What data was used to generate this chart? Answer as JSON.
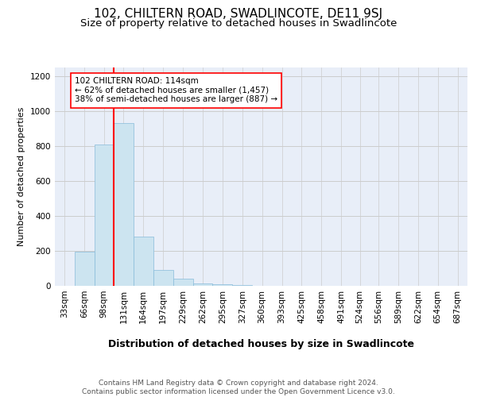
{
  "title": "102, CHILTERN ROAD, SWADLINCOTE, DE11 9SJ",
  "subtitle": "Size of property relative to detached houses in Swadlincote",
  "xlabel": "Distribution of detached houses by size in Swadlincote",
  "ylabel": "Number of detached properties",
  "bar_color": "#cce4f0",
  "bar_edge_color": "#88bbda",
  "vline_color": "red",
  "vline_x": 114,
  "annotation_text": "102 CHILTERN ROAD: 114sqm\n← 62% of detached houses are smaller (1,457)\n38% of semi-detached houses are larger (887) →",
  "annotation_box_color": "white",
  "annotation_box_edge": "red",
  "categories": [
    "33sqm",
    "66sqm",
    "98sqm",
    "131sqm",
    "164sqm",
    "197sqm",
    "229sqm",
    "262sqm",
    "295sqm",
    "327sqm",
    "360sqm",
    "393sqm",
    "425sqm",
    "458sqm",
    "491sqm",
    "524sqm",
    "556sqm",
    "589sqm",
    "622sqm",
    "654sqm",
    "687sqm"
  ],
  "bin_edges": [
    16.5,
    49.5,
    82.5,
    114.5,
    147.5,
    180.5,
    213.5,
    246.5,
    279.5,
    312.5,
    345.5,
    378.5,
    411.5,
    444.5,
    477.5,
    510.5,
    539.5,
    572.5,
    605.5,
    638.5,
    671.5,
    704.5
  ],
  "values": [
    0,
    195,
    810,
    930,
    280,
    90,
    40,
    15,
    8,
    5,
    0,
    0,
    0,
    0,
    0,
    0,
    0,
    0,
    0,
    0,
    0
  ],
  "ylim": [
    0,
    1250
  ],
  "yticks": [
    0,
    200,
    400,
    600,
    800,
    1000,
    1200
  ],
  "grid_color": "#cccccc",
  "bg_color": "#e8eef8",
  "footer": "Contains HM Land Registry data © Crown copyright and database right 2024.\nContains public sector information licensed under the Open Government Licence v3.0.",
  "title_fontsize": 11,
  "subtitle_fontsize": 9.5,
  "xlabel_fontsize": 9,
  "ylabel_fontsize": 8,
  "tick_fontsize": 7.5,
  "annotation_fontsize": 7.5,
  "footer_fontsize": 6.5
}
